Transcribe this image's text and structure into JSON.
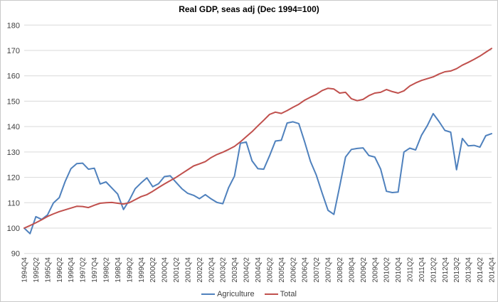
{
  "title": "Real GDP, seas adj (Dec 1994=100)",
  "chart_data": {
    "type": "line",
    "title": "Real GDP, seas adj (Dec 1994=100)",
    "xlabel": "",
    "ylabel": "",
    "ylim": [
      90,
      180
    ],
    "ytick_step": 10,
    "grid": true,
    "legend_position": "bottom",
    "x_tick_note": "every second quarter labeled, labels rotated 90deg",
    "categories": [
      "1994Q4",
      "1995Q1",
      "1995Q2",
      "1995Q3",
      "1995Q4",
      "1996Q1",
      "1996Q2",
      "1996Q3",
      "1996Q4",
      "1997Q1",
      "1997Q2",
      "1997Q3",
      "1997Q4",
      "1998Q1",
      "1998Q2",
      "1998Q3",
      "1998Q4",
      "1999Q1",
      "1999Q2",
      "1999Q3",
      "1999Q4",
      "2000Q1",
      "2000Q2",
      "2000Q3",
      "2000Q4",
      "2001Q1",
      "2001Q2",
      "2001Q3",
      "2001Q4",
      "2002Q1",
      "2002Q2",
      "2002Q3",
      "2002Q4",
      "2003Q1",
      "2003Q2",
      "2003Q3",
      "2003Q4",
      "2004Q1",
      "2004Q2",
      "2004Q3",
      "2004Q4",
      "2005Q1",
      "2005Q2",
      "2005Q3",
      "2005Q4",
      "2006Q1",
      "2006Q2",
      "2006Q3",
      "2006Q4",
      "2007Q1",
      "2007Q2",
      "2007Q3",
      "2007Q4",
      "2008Q1",
      "2008Q2",
      "2008Q3",
      "2008Q4",
      "2009Q1",
      "2009Q2",
      "2009Q3",
      "2009Q4",
      "2010Q1",
      "2010Q2",
      "2010Q3",
      "2010Q4",
      "2011Q1",
      "2011Q2",
      "2011Q3",
      "2011Q4",
      "2012Q1",
      "2012Q2",
      "2012Q3",
      "2012Q4",
      "2013Q1",
      "2013Q2",
      "2013Q3",
      "2013Q4",
      "2014Q1",
      "2014Q2",
      "2014Q3",
      "2014Q4"
    ],
    "series": [
      {
        "name": "Agriculture",
        "color": "#4F81BD",
        "values": [
          100,
          97.8,
          104.5,
          103.4,
          105.2,
          109.9,
          112.0,
          118.3,
          123.4,
          125.4,
          125.6,
          123.2,
          123.6,
          117.4,
          118.2,
          115.8,
          113.4,
          107.3,
          111.0,
          115.5,
          117.8,
          119.8,
          116.3,
          117.5,
          120.3,
          120.6,
          118.0,
          115.5,
          113.7,
          112.9,
          111.6,
          113.2,
          111.5,
          110.1,
          109.6,
          116.0,
          120.5,
          133.4,
          133.9,
          126.5,
          123.4,
          123.2,
          128.5,
          134.3,
          134.6,
          141.4,
          141.9,
          141.2,
          134.0,
          126.3,
          120.9,
          113.8,
          107.0,
          105.4,
          116.5,
          128.0,
          131.0,
          131.4,
          131.6,
          128.6,
          128.0,
          123.3,
          114.5,
          114.0,
          114.2,
          130.0,
          131.5,
          130.8,
          136.6,
          140.4,
          145.1,
          142.0,
          138.5,
          137.8,
          123.0,
          135.3,
          132.4,
          132.6,
          131.9,
          136.4,
          137.2
        ]
      },
      {
        "name": "Total",
        "color": "#C0504D",
        "values": [
          100,
          101.0,
          102.1,
          103.3,
          104.6,
          105.6,
          106.5,
          107.2,
          107.9,
          108.6,
          108.5,
          108.1,
          109.0,
          109.8,
          110.0,
          110.1,
          109.8,
          109.5,
          110.0,
          111.2,
          112.4,
          113.2,
          114.5,
          116.0,
          117.4,
          118.7,
          120.0,
          121.5,
          123.0,
          124.5,
          125.3,
          126.2,
          127.8,
          129.0,
          129.9,
          131.0,
          132.2,
          134.0,
          136.0,
          138.0,
          140.3,
          142.5,
          144.8,
          145.7,
          145.2,
          146.3,
          147.6,
          148.8,
          150.4,
          151.6,
          152.7,
          154.2,
          155.1,
          154.8,
          153.2,
          153.5,
          151.0,
          150.2,
          150.7,
          152.2,
          153.2,
          153.5,
          154.6,
          153.8,
          153.2,
          154.1,
          156.0,
          157.2,
          158.2,
          158.9,
          159.6,
          160.7,
          161.6,
          161.9,
          162.8,
          164.2,
          165.3,
          166.5,
          167.8,
          169.3,
          170.8
        ]
      }
    ],
    "colors": {
      "gridline": "#D9D9D9",
      "axis_text": "#3f3f3f",
      "frame_border": "#c9c9c9"
    }
  }
}
